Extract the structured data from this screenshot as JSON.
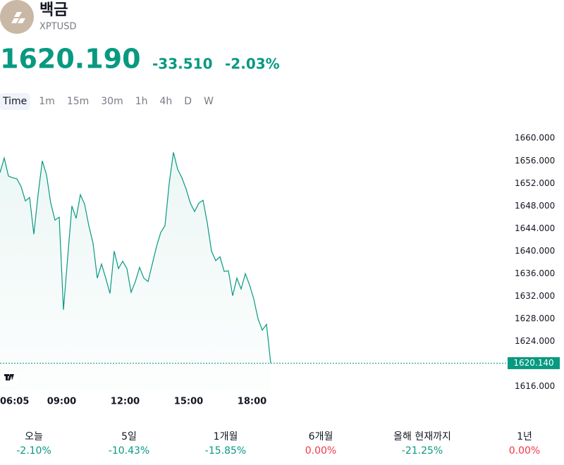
{
  "header": {
    "title": "백금",
    "symbol": "XPTUSD",
    "price": "1620.190",
    "change": "-33.510",
    "change_percent": "-2.03%",
    "color": "#089981"
  },
  "tabs": [
    "Time",
    "1m",
    "15m",
    "30m",
    "1h",
    "4h",
    "D",
    "W"
  ],
  "active_tab": 0,
  "chart_data": {
    "type": "area",
    "x": [
      "06:05",
      "06:17",
      "06:29",
      "06:41",
      "06:53",
      "07:05",
      "07:17",
      "07:29",
      "07:41",
      "07:53",
      "08:05",
      "08:17",
      "08:29",
      "08:41",
      "08:53",
      "09:05",
      "09:17",
      "09:29",
      "09:41",
      "09:53",
      "10:05",
      "10:17",
      "10:29",
      "10:41",
      "10:53",
      "11:05",
      "11:17",
      "11:29",
      "11:41",
      "11:53",
      "12:05",
      "12:17",
      "12:29",
      "12:41",
      "12:53",
      "13:05",
      "13:17",
      "13:29",
      "13:41",
      "13:53",
      "14:05",
      "14:17",
      "14:29",
      "14:41",
      "14:53",
      "15:05",
      "15:17",
      "15:29",
      "15:41",
      "15:53",
      "16:05",
      "16:17",
      "16:29",
      "16:41",
      "16:53",
      "17:05",
      "17:17",
      "17:29",
      "17:41",
      "17:53",
      "18:05",
      "18:17",
      "18:29",
      "18:41",
      "18:53"
    ],
    "series": [
      {
        "color": "#089981",
        "values": [
          1653.9,
          1656.5,
          1653.3,
          1653.0,
          1652.8,
          1651.4,
          1648.9,
          1649.5,
          1643.0,
          1650.0,
          1656.0,
          1653.5,
          1648.5,
          1645.5,
          1646.0,
          1629.6,
          1638.9,
          1648.0,
          1645.8,
          1650.0,
          1648.3,
          1644.5,
          1641.4,
          1635.2,
          1637.7,
          1635.2,
          1632.5,
          1640.0,
          1636.9,
          1638.2,
          1636.9,
          1632.7,
          1634.6,
          1637.1,
          1635.2,
          1634.6,
          1637.7,
          1640.8,
          1643.3,
          1644.5,
          1652.0,
          1657.5,
          1654.5,
          1653.0,
          1651.0,
          1648.5,
          1647.0,
          1648.5,
          1649.0,
          1645.0,
          1640.0,
          1638.3,
          1639.0,
          1636.4,
          1636.5,
          1632.1,
          1635.2,
          1633.3,
          1636.0,
          1634.0,
          1631.5,
          1628.0,
          1626.0,
          1627.0,
          1620.14
        ]
      }
    ],
    "ylim": [
      1615.2,
      1663.9
    ],
    "yticks": [
      {
        "value": 1616,
        "label": "1616.000"
      },
      {
        "value": 1624,
        "label": "1624.000"
      },
      {
        "value": 1628,
        "label": "1628.000"
      },
      {
        "value": 1632,
        "label": "1632.000"
      },
      {
        "value": 1636,
        "label": "1636.000"
      },
      {
        "value": 1640,
        "label": "1640.000"
      },
      {
        "value": 1644,
        "label": "1644.000"
      },
      {
        "value": 1648,
        "label": "1648.000"
      },
      {
        "value": 1652,
        "label": "1652.000"
      },
      {
        "value": 1656,
        "label": "1656.000"
      },
      {
        "value": 1660,
        "label": "1660.000"
      }
    ],
    "xticks": [
      "06:05",
      "09:00",
      "12:00",
      "15:00",
      "18:00"
    ],
    "grid": false,
    "last_price": {
      "value": 1620.14,
      "label": "1620.140"
    }
  },
  "performance": [
    {
      "period": "오늘",
      "change": "-2.10%",
      "color": "#089981"
    },
    {
      "period": "5일",
      "change": "-10.43%",
      "color": "#089981"
    },
    {
      "period": "1개월",
      "change": "-15.85%",
      "color": "#089981"
    },
    {
      "period": "6개월",
      "change": "0.00%",
      "color": "#f23645"
    },
    {
      "period": "올해 현재까지",
      "change": "-21.25%",
      "color": "#089981"
    },
    {
      "period": "1년",
      "change": "0.00%",
      "color": "#f23645"
    }
  ]
}
